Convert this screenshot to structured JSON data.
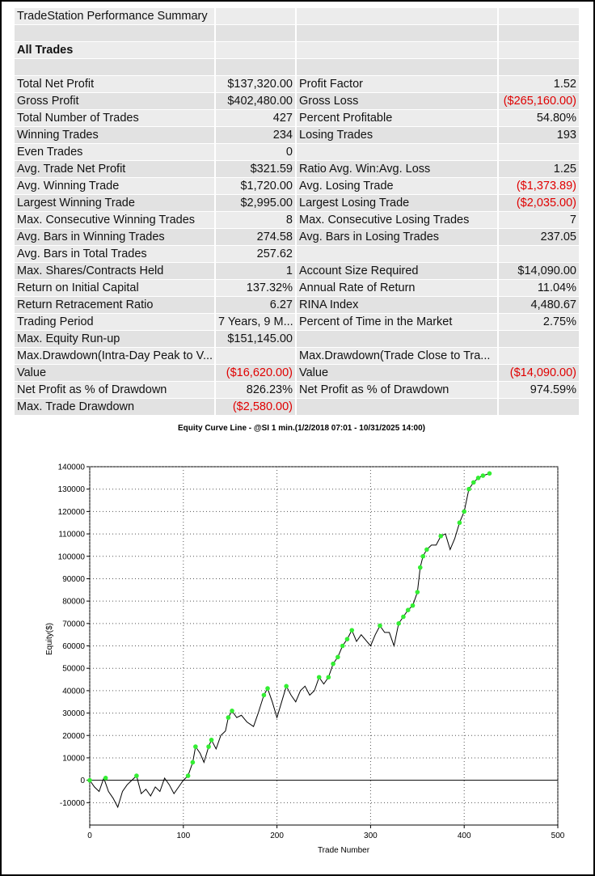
{
  "table": {
    "title": "TradeStation Performance Summary",
    "section": "All Trades",
    "rows": [
      [
        "Total Net Profit",
        "$137,320.00",
        "Profit Factor",
        "1.52"
      ],
      [
        "Gross Profit",
        "$402,480.00",
        "Gross Loss",
        "($265,160.00)"
      ],
      [
        "Total Number of Trades",
        "427",
        "Percent Profitable",
        "54.80%"
      ],
      [
        "Winning Trades",
        "234",
        "Losing Trades",
        "193"
      ],
      [
        "Even Trades",
        "0",
        null,
        null
      ],
      [
        "Avg. Trade Net Profit",
        "$321.59",
        "Ratio Avg. Win:Avg. Loss",
        "1.25"
      ],
      [
        "Avg. Winning Trade",
        "$1,720.00",
        "Avg. Losing Trade",
        "($1,373.89)"
      ],
      [
        "Largest Winning Trade",
        "$2,995.00",
        "Largest Losing Trade",
        "($2,035.00)"
      ],
      [
        "Max. Consecutive Winning Trades",
        "8",
        "Max. Consecutive Losing Trades",
        "7"
      ],
      [
        "Avg. Bars in Winning Trades",
        "274.58",
        "Avg. Bars in Losing Trades",
        "237.05"
      ],
      [
        "Avg. Bars in Total Trades",
        "257.62",
        null,
        null
      ],
      [
        "Max. Shares/Contracts Held",
        "1",
        "Account Size Required",
        "$14,090.00"
      ],
      [
        "Return on Initial Capital",
        "137.32%",
        "Annual Rate of Return",
        "11.04%"
      ],
      [
        "Return Retracement Ratio",
        "6.27",
        "RINA Index",
        "4,480.67"
      ],
      [
        "Trading Period",
        "7 Years, 9 M...",
        "Percent of Time in the Market",
        "2.75%"
      ],
      [
        "Max. Equity Run-up",
        "$151,145.00",
        null,
        null
      ],
      [
        "Max.Drawdown(Intra-Day Peak to V...",
        null,
        "Max.Drawdown(Trade Close to Tra...",
        null
      ],
      [
        "Value",
        "($16,620.00)",
        "Value",
        "($14,090.00)"
      ],
      [
        "Net Profit as % of Drawdown",
        "826.23%",
        "Net Profit as % of Drawdown",
        "974.59%"
      ],
      [
        "Max. Trade Drawdown",
        "($2,580.00)",
        null,
        null
      ]
    ]
  },
  "chart_data": {
    "type": "line",
    "title": "Equity Curve Line - @SI 1 min.(1/2/2018 07:01 - 10/31/2025 14:00)",
    "xlabel": "Trade Number",
    "ylabel": "Equity($)",
    "xlim": [
      0,
      500
    ],
    "xticks": [
      0,
      100,
      200,
      300,
      400,
      500
    ],
    "ylim": [
      -20000,
      140000
    ],
    "yticks": [
      -10000,
      0,
      10000,
      20000,
      30000,
      40000,
      50000,
      60000,
      70000,
      80000,
      90000,
      100000,
      110000,
      120000,
      130000,
      140000
    ],
    "grid": true,
    "series": [
      {
        "color": "#000000",
        "x": [
          0,
          5,
          10,
          15,
          20,
          25,
          30,
          35,
          40,
          45,
          50,
          55,
          60,
          65,
          70,
          75,
          80,
          85,
          90,
          95,
          100,
          105,
          110,
          113,
          118,
          122,
          127,
          130,
          135,
          140,
          145,
          148,
          152,
          157,
          162,
          168,
          175,
          180,
          186,
          190,
          195,
          200,
          205,
          210,
          215,
          220,
          225,
          230,
          235,
          240,
          245,
          250,
          255,
          260,
          265,
          270,
          275,
          280,
          285,
          290,
          300,
          305,
          310,
          315,
          320,
          325,
          330,
          335,
          340,
          345,
          350,
          353,
          356,
          360,
          365,
          370,
          375,
          380,
          385,
          390,
          395,
          400,
          405,
          410,
          415,
          420,
          427
        ],
        "values": [
          0,
          -3000,
          -5000,
          1000,
          -5000,
          -8000,
          -12000,
          -5000,
          -2000,
          0,
          2000,
          -6000,
          -4000,
          -7000,
          -3000,
          -5000,
          1000,
          -2000,
          -6000,
          -3000,
          0,
          2000,
          8000,
          15000,
          12000,
          8000,
          15000,
          18000,
          14000,
          20000,
          22000,
          28000,
          31000,
          28000,
          29000,
          26000,
          24000,
          30000,
          38000,
          41000,
          35000,
          28000,
          35000,
          42000,
          38000,
          35000,
          40000,
          42000,
          38000,
          40000,
          46000,
          43000,
          46000,
          52000,
          55000,
          60000,
          63000,
          67000,
          62000,
          65000,
          60000,
          65000,
          69000,
          66000,
          66000,
          60000,
          70000,
          73000,
          76000,
          78000,
          84000,
          95000,
          100000,
          103000,
          105000,
          105000,
          109000,
          110000,
          103000,
          108000,
          115000,
          120000,
          130000,
          133000,
          135000,
          136000,
          137000
        ]
      },
      {
        "color": "#33ee33",
        "marker": true,
        "x": [
          0,
          17,
          50,
          105,
          110,
          113,
          127,
          130,
          148,
          152,
          186,
          190,
          210,
          245,
          255,
          260,
          265,
          270,
          275,
          280,
          310,
          330,
          335,
          340,
          345,
          350,
          353,
          356,
          360,
          375,
          395,
          400,
          405,
          410,
          415,
          420,
          427
        ],
        "values": [
          0,
          1000,
          2000,
          2000,
          8000,
          15000,
          15000,
          18000,
          28000,
          31000,
          38000,
          41000,
          42000,
          46000,
          46000,
          52000,
          55000,
          60000,
          63000,
          67000,
          69000,
          70000,
          73000,
          76000,
          78000,
          84000,
          95000,
          100000,
          103000,
          109000,
          115000,
          120000,
          130000,
          133000,
          135000,
          136000,
          137000
        ]
      }
    ]
  }
}
